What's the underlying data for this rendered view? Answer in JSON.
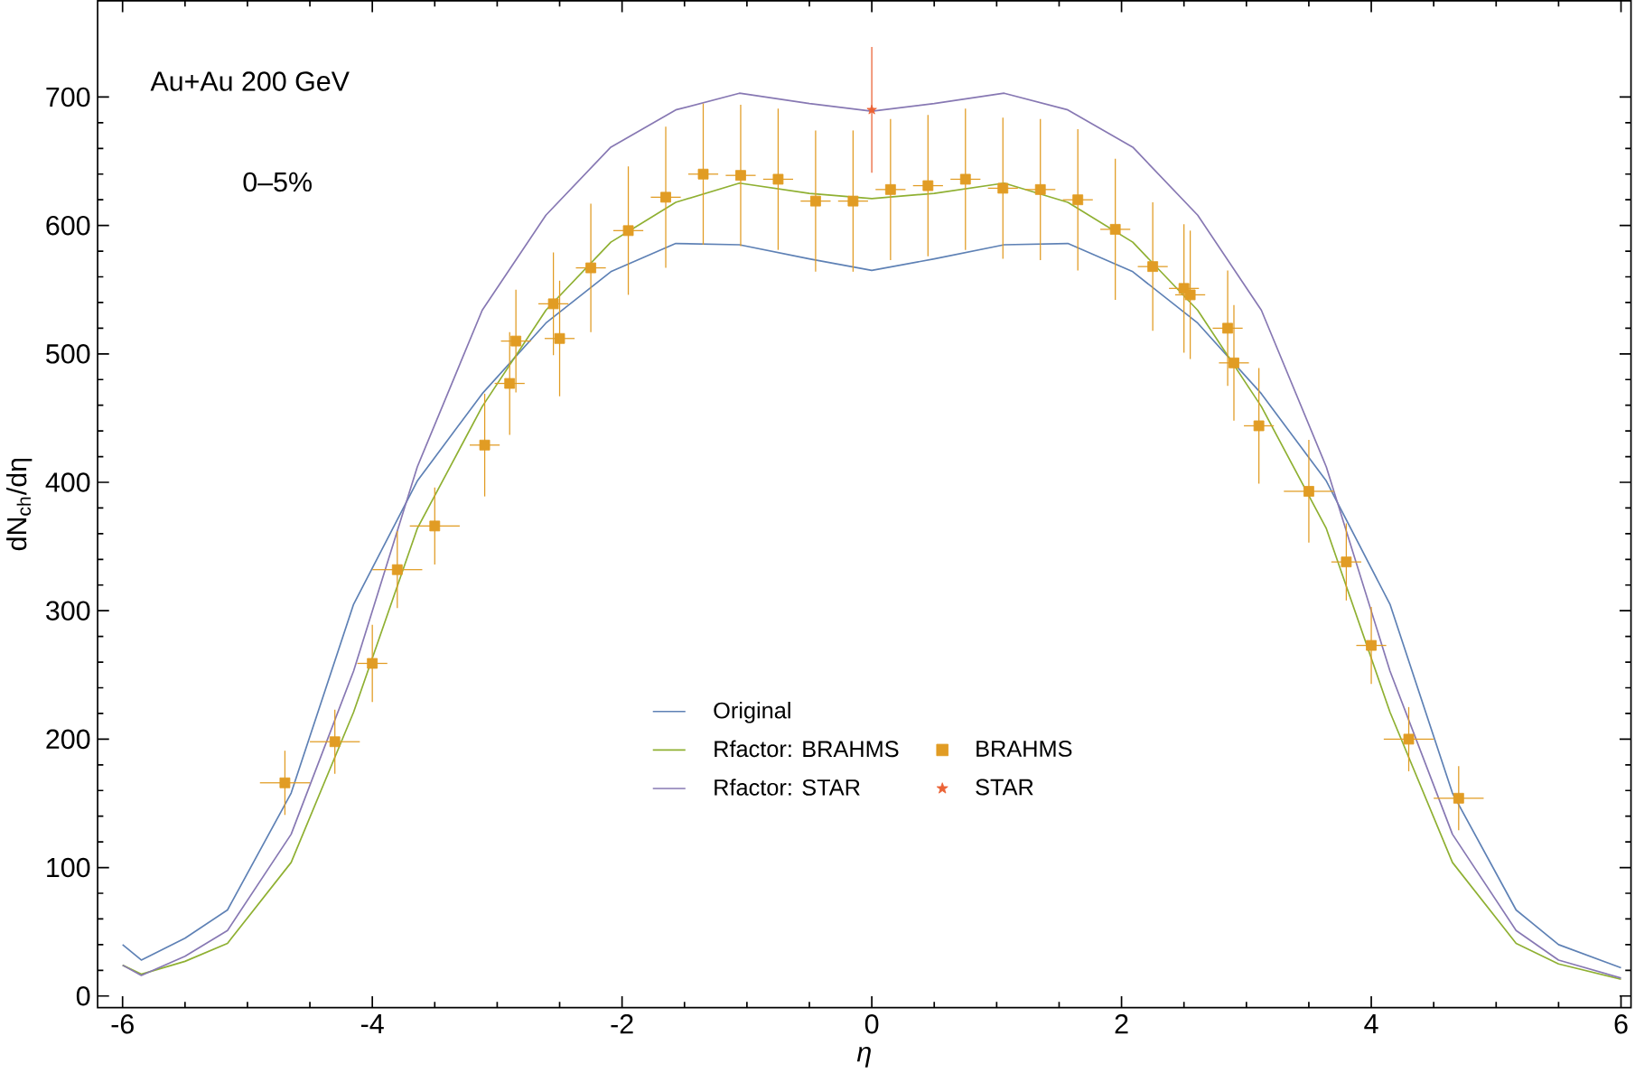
{
  "chart_data": {
    "type": "line",
    "xlabel": "η",
    "ylabel": "dN$_{ch}$/dη",
    "xlim": [
      -6.2,
      6.08
    ],
    "ylim": [
      -9,
      775
    ],
    "xticks": [
      -6,
      -4,
      -2,
      0,
      2,
      4,
      6
    ],
    "yticks": [
      0,
      100,
      200,
      300,
      400,
      500,
      600,
      700
    ],
    "annotations": [
      "Au+Au 200 GeV",
      "0–5%"
    ],
    "legend": "bottom",
    "grid": false,
    "series": [
      {
        "name": "Original",
        "color": "#5e81b5",
        "marker": "none",
        "x": [
          -6,
          -5.85,
          -5.5,
          -5.16,
          -4.65,
          -4.15,
          -3.64,
          -3.12,
          -2.61,
          -2.09,
          -1.57,
          -1.06,
          -0.5,
          0,
          0.5,
          1.06,
          1.57,
          2.09,
          2.61,
          3.12,
          3.64,
          4.15,
          4.65,
          5.16,
          5.5,
          6
        ],
        "values": [
          40,
          28,
          45,
          67,
          158,
          305,
          401,
          469,
          524,
          564,
          586,
          585,
          574,
          565,
          574,
          585,
          586,
          564,
          524,
          469,
          401,
          305,
          158,
          67,
          40,
          22
        ]
      },
      {
        "name": "Rfactor: BRAHMS",
        "color": "#8fb032",
        "marker": "none",
        "x": [
          -6,
          -5.85,
          -5.5,
          -5.16,
          -4.65,
          -4.15,
          -3.64,
          -3.12,
          -2.61,
          -2.09,
          -1.57,
          -1.06,
          -0.5,
          0,
          0.5,
          1.06,
          1.57,
          2.09,
          2.61,
          3.12,
          3.64,
          4.15,
          4.65,
          5.16,
          5.5,
          6
        ],
        "values": [
          24,
          17,
          27,
          41,
          104,
          221,
          364,
          459,
          534,
          587,
          618,
          633,
          625,
          621,
          625,
          633,
          618,
          587,
          534,
          459,
          364,
          221,
          104,
          41,
          25,
          13
        ]
      },
      {
        "name": "Rfactor: STAR",
        "color": "#8778b3",
        "marker": "none",
        "x": [
          -6,
          -5.85,
          -5.5,
          -5.16,
          -4.65,
          -4.15,
          -3.64,
          -3.12,
          -2.61,
          -2.09,
          -1.57,
          -1.06,
          -0.5,
          0,
          0.5,
          1.06,
          1.57,
          2.09,
          2.61,
          3.12,
          3.64,
          4.15,
          4.65,
          5.16,
          5.5,
          6
        ],
        "values": [
          24,
          16,
          31,
          51,
          126,
          253,
          412,
          534,
          608,
          661,
          690,
          703,
          695,
          689,
          695,
          703,
          690,
          661,
          608,
          534,
          412,
          253,
          126,
          51,
          28,
          14
        ]
      },
      {
        "name": "BRAHMS",
        "type": "scatter",
        "color": "#e19c24",
        "marker": "square",
        "x": [
          -4.7,
          -4.3,
          -4.0,
          -3.8,
          -3.5,
          -3.1,
          -2.9,
          -2.85,
          -2.55,
          -2.5,
          -2.25,
          -1.95,
          -1.65,
          -1.35,
          -1.05,
          -0.75,
          -0.45,
          -0.15,
          0.15,
          0.45,
          0.75,
          1.05,
          1.35,
          1.65,
          1.95,
          2.25,
          2.5,
          2.55,
          2.85,
          2.9,
          3.1,
          3.5,
          3.8,
          4.0,
          4.3,
          4.7
        ],
        "values": [
          166,
          198,
          259,
          332,
          366,
          429,
          477,
          510,
          539,
          512,
          567,
          596,
          622,
          640,
          639,
          636,
          619,
          619,
          628,
          631,
          636,
          629,
          628,
          620,
          597,
          568,
          551,
          546,
          520,
          493,
          444,
          393,
          338,
          273,
          200,
          154
        ],
        "errors": [
          25,
          25,
          30,
          30,
          30,
          40,
          40,
          40,
          40,
          45,
          50,
          50,
          55,
          55,
          55,
          55,
          55,
          55,
          55,
          55,
          55,
          55,
          55,
          55,
          55,
          50,
          50,
          50,
          45,
          45,
          45,
          40,
          30,
          30,
          25,
          25
        ],
        "xerrors": [
          0.2,
          0.2,
          0.12,
          0.2,
          0.2,
          0.12,
          0.12,
          0.12,
          0.12,
          0.12,
          0.12,
          0.12,
          0.12,
          0.12,
          0.12,
          0.12,
          0.12,
          0.12,
          0.12,
          0.12,
          0.12,
          0.12,
          0.12,
          0.12,
          0.12,
          0.12,
          0.12,
          0.12,
          0.12,
          0.12,
          0.12,
          0.2,
          0.12,
          0.12,
          0.2,
          0.2
        ]
      },
      {
        "name": "STAR",
        "type": "scatter",
        "color": "#eb6235",
        "marker": "star",
        "x": [
          0
        ],
        "values": [
          690
        ],
        "errors": [
          49
        ]
      }
    ]
  }
}
